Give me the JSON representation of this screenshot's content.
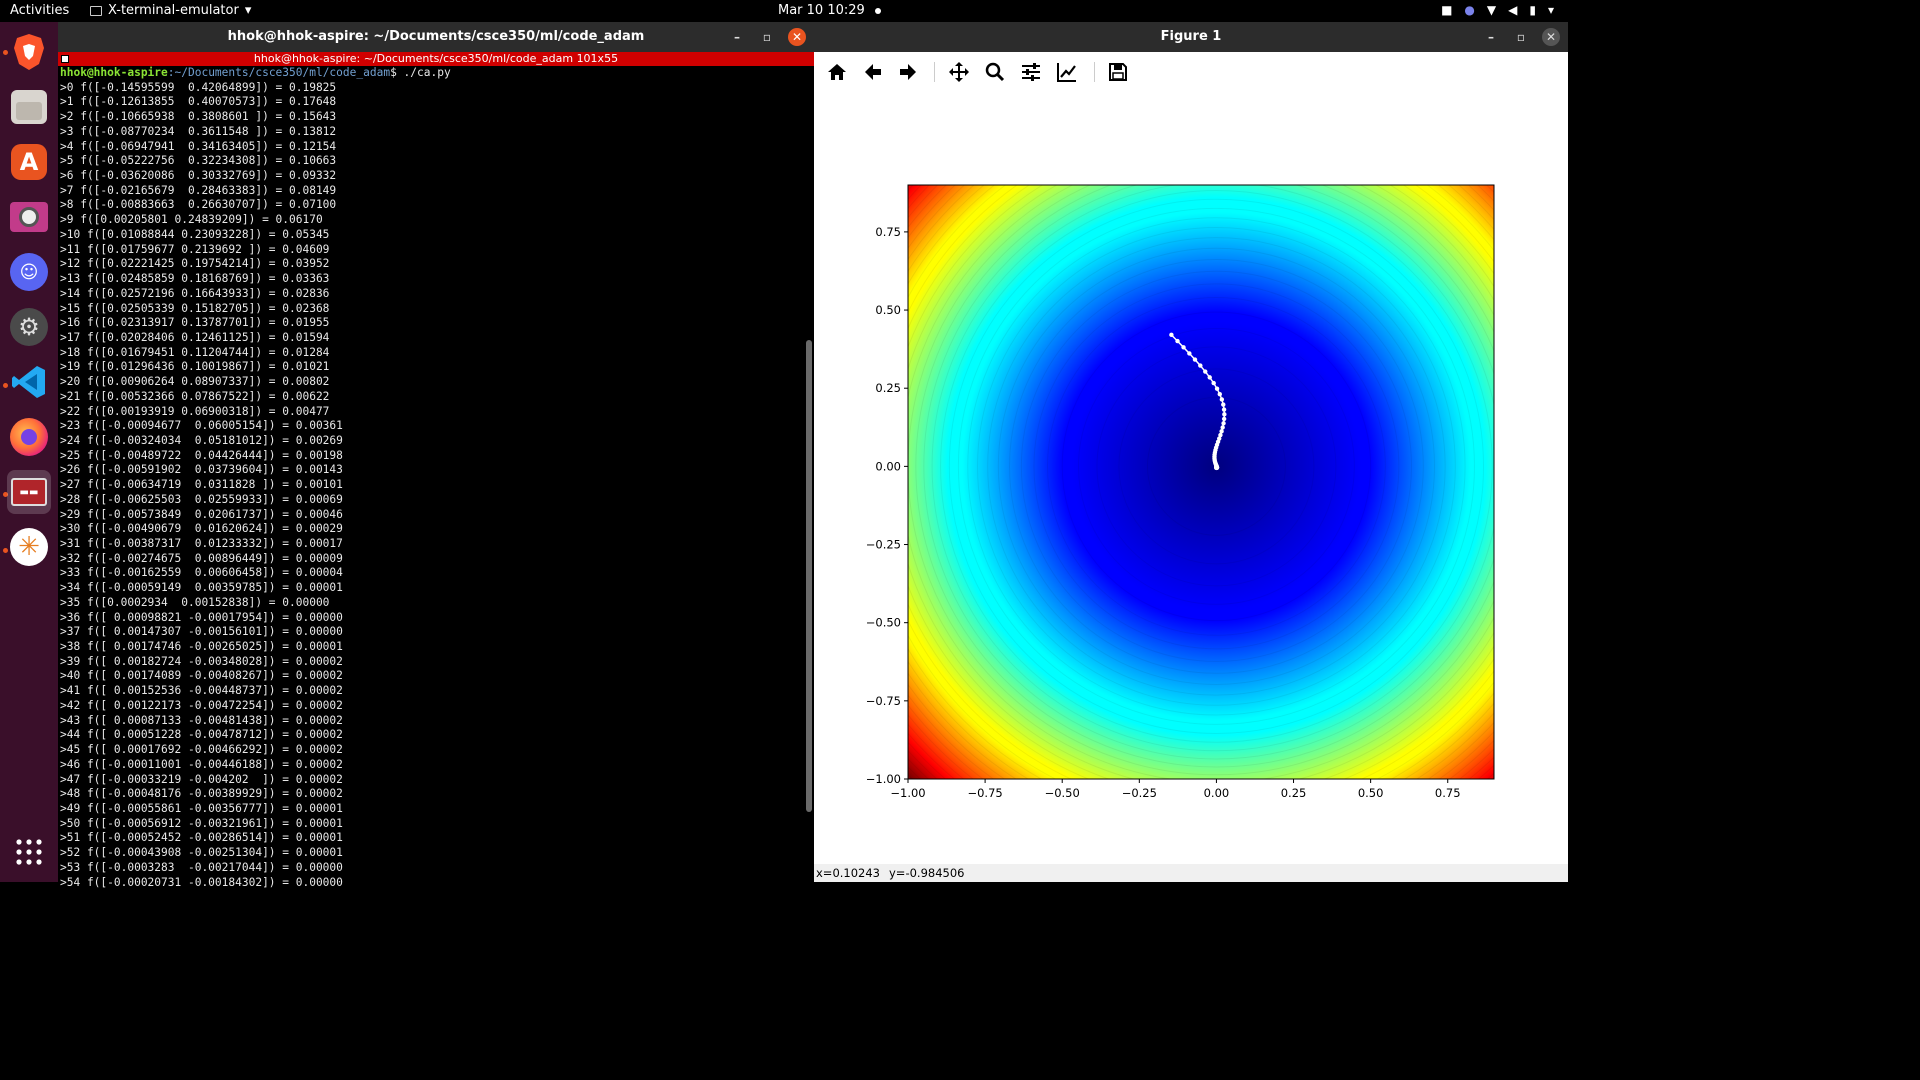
{
  "topbar": {
    "activities": "Activities",
    "app_menu": "X-terminal-emulator",
    "clock": "Mar 10  10:29"
  },
  "dock": {
    "apps": [
      "brave-browser",
      "files",
      "app-center",
      "video-player",
      "discord",
      "settings",
      "vscode",
      "firefox",
      "terminal",
      "gimp-like"
    ],
    "show_apps": "show-applications"
  },
  "terminal": {
    "window_title": "hhok@hhok-aspire: ~/Documents/csce350/ml/code_adam",
    "xterm_title": "hhok@hhok-aspire: ~/Documents/csce350/ml/code_adam 101x55",
    "prompt_user": "hhok@hhok-aspire",
    "prompt_path": ":~/Documents/csce350/ml/code_adam",
    "prompt_cmd": "$ ./ca.py",
    "lines": [
      ">0 f([-0.14595599  0.42064899]) = 0.19825",
      ">1 f([-0.12613855  0.40070573]) = 0.17648",
      ">2 f([-0.10665938  0.3808601 ]) = 0.15643",
      ">3 f([-0.08770234  0.3611548 ]) = 0.13812",
      ">4 f([-0.06947941  0.34163405]) = 0.12154",
      ">5 f([-0.05222756  0.32234308]) = 0.10663",
      ">6 f([-0.03620086  0.30332769]) = 0.09332",
      ">7 f([-0.02165679  0.28463383]) = 0.08149",
      ">8 f([-0.00883663  0.26630707]) = 0.07100",
      ">9 f([0.00205801 0.24839209]) = 0.06170",
      ">10 f([0.01088844 0.23093228]) = 0.05345",
      ">11 f([0.01759677 0.2139692 ]) = 0.04609",
      ">12 f([0.02221425 0.19754214]) = 0.03952",
      ">13 f([0.02485859 0.18168769]) = 0.03363",
      ">14 f([0.02572196 0.16643933]) = 0.02836",
      ">15 f([0.02505339 0.15182705]) = 0.02368",
      ">16 f([0.02313917 0.13787701]) = 0.01955",
      ">17 f([0.02028406 0.12461125]) = 0.01594",
      ">18 f([0.01679451 0.11204744]) = 0.01284",
      ">19 f([0.01296436 0.10019867]) = 0.01021",
      ">20 f([0.00906264 0.08907337]) = 0.00802",
      ">21 f([0.00532366 0.07867522]) = 0.00622",
      ">22 f([0.00193919 0.06900318]) = 0.00477",
      ">23 f([-0.00094677  0.06005154]) = 0.00361",
      ">24 f([-0.00324034  0.05181012]) = 0.00269",
      ">25 f([-0.00489722  0.04426444]) = 0.00198",
      ">26 f([-0.00591902  0.03739604]) = 0.00143",
      ">27 f([-0.00634719  0.0311828 ]) = 0.00101",
      ">28 f([-0.00625503  0.02559933]) = 0.00069",
      ">29 f([-0.00573849  0.02061737]) = 0.00046",
      ">30 f([-0.00490679  0.01620624]) = 0.00029",
      ">31 f([-0.00387317  0.01233332]) = 0.00017",
      ">32 f([-0.00274675  0.00896449]) = 0.00009",
      ">33 f([-0.00162559  0.00606458]) = 0.00004",
      ">34 f([-0.00059149  0.00359785]) = 0.00001",
      ">35 f([0.0002934  0.00152838]) = 0.00000",
      ">36 f([ 0.00098821 -0.00017954]) = 0.00000",
      ">37 f([ 0.00147307 -0.00156101]) = 0.00000",
      ">38 f([ 0.00174746 -0.00265025]) = 0.00001",
      ">39 f([ 0.00182724 -0.00348028]) = 0.00002",
      ">40 f([ 0.00174089 -0.00408267]) = 0.00002",
      ">41 f([ 0.00152536 -0.00448737]) = 0.00002",
      ">42 f([ 0.00122173 -0.00472254]) = 0.00002",
      ">43 f([ 0.00087133 -0.00481438]) = 0.00002",
      ">44 f([ 0.00051228 -0.00478712]) = 0.00002",
      ">45 f([ 0.00017692 -0.00466292]) = 0.00002",
      ">46 f([-0.00011001 -0.00446188]) = 0.00002",
      ">47 f([-0.00033219 -0.004202  ]) = 0.00002",
      ">48 f([-0.00048176 -0.00389929]) = 0.00002",
      ">49 f([-0.00055861 -0.00356777]) = 0.00001",
      ">50 f([-0.00056912 -0.00321961]) = 0.00001",
      ">51 f([-0.00052452 -0.00286514]) = 0.00001",
      ">52 f([-0.00043908 -0.00251304]) = 0.00001",
      ">53 f([-0.0003283  -0.00217044]) = 0.00000",
      ">54 f([-0.00020731 -0.00184302]) = 0.00000"
    ]
  },
  "figure": {
    "window_title": "Figure 1",
    "toolbar": [
      "home-icon",
      "back-arrow-icon",
      "forward-arrow-icon",
      "pan-icon",
      "zoom-icon",
      "configure-subplots-icon",
      "edit-axes-icon",
      "save-icon"
    ],
    "status_x": "x=0.10243",
    "status_y": "y=-0.984506"
  },
  "chart_data": {
    "type": "heatmap",
    "title": "",
    "xlabel": "",
    "ylabel": "",
    "xlim": [
      -1.0,
      0.9
    ],
    "ylim": [
      -1.0,
      0.9
    ],
    "colormap": "jet",
    "function": "x^2 + y^2",
    "xticks": [
      "−1.00",
      "−0.75",
      "−0.50",
      "−0.25",
      "0.00",
      "0.25",
      "0.50",
      "0.75"
    ],
    "yticks": [
      "−1.00",
      "−0.75",
      "−0.50",
      "−0.25",
      "0.00",
      "0.25",
      "0.50",
      "0.75"
    ],
    "tick_values": [
      -1.0,
      -0.75,
      -0.5,
      -0.25,
      0.0,
      0.25,
      0.5,
      0.75
    ],
    "path_color": "#ffffff",
    "path": [
      [
        -0.14595599,
        0.42064899
      ],
      [
        -0.12613855,
        0.40070573
      ],
      [
        -0.10665938,
        0.3808601
      ],
      [
        -0.08770234,
        0.3611548
      ],
      [
        -0.06947941,
        0.34163405
      ],
      [
        -0.05222756,
        0.32234308
      ],
      [
        -0.03620086,
        0.30332769
      ],
      [
        -0.02165679,
        0.28463383
      ],
      [
        -0.00883663,
        0.26630707
      ],
      [
        0.00205801,
        0.24839209
      ],
      [
        0.01088844,
        0.23093228
      ],
      [
        0.01759677,
        0.2139692
      ],
      [
        0.02221425,
        0.19754214
      ],
      [
        0.02485859,
        0.18168769
      ],
      [
        0.02572196,
        0.16643933
      ],
      [
        0.02505339,
        0.15182705
      ],
      [
        0.02313917,
        0.13787701
      ],
      [
        0.02028406,
        0.12461125
      ],
      [
        0.01679451,
        0.11204744
      ],
      [
        0.01296436,
        0.10019867
      ],
      [
        0.00906264,
        0.08907337
      ],
      [
        0.00532366,
        0.07867522
      ],
      [
        0.00193919,
        0.06900318
      ],
      [
        -0.00094677,
        0.06005154
      ],
      [
        -0.00324034,
        0.05181012
      ],
      [
        -0.00489722,
        0.04426444
      ],
      [
        -0.00591902,
        0.03739604
      ],
      [
        -0.00634719,
        0.0311828
      ],
      [
        -0.00625503,
        0.02559933
      ],
      [
        -0.00573849,
        0.02061737
      ],
      [
        -0.00490679,
        0.01620624
      ],
      [
        -0.00387317,
        0.01233332
      ],
      [
        -0.00274675,
        0.00896449
      ],
      [
        -0.00162559,
        0.00606458
      ],
      [
        -0.00059149,
        0.00359785
      ],
      [
        0.0002934,
        0.00152838
      ],
      [
        0.00098821,
        -0.00017954
      ],
      [
        0.00147307,
        -0.00156101
      ],
      [
        0.00174746,
        -0.00265025
      ],
      [
        0.00182724,
        -0.00348028
      ],
      [
        0.00174089,
        -0.00408267
      ],
      [
        0.00152536,
        -0.00448737
      ],
      [
        0.00122173,
        -0.00472254
      ],
      [
        0.00087133,
        -0.00481438
      ],
      [
        0.00051228,
        -0.00478712
      ],
      [
        0.00017692,
        -0.00466292
      ],
      [
        -0.00011001,
        -0.00446188
      ],
      [
        -0.00033219,
        -0.004202
      ],
      [
        -0.00048176,
        -0.00389929
      ],
      [
        -0.00055861,
        -0.00356777
      ],
      [
        -0.00056912,
        -0.00321961
      ],
      [
        -0.00052452,
        -0.00286514
      ],
      [
        -0.00043908,
        -0.00251304
      ],
      [
        -0.0003283,
        -0.00217044
      ],
      [
        -0.00020731,
        -0.00184302
      ]
    ]
  }
}
